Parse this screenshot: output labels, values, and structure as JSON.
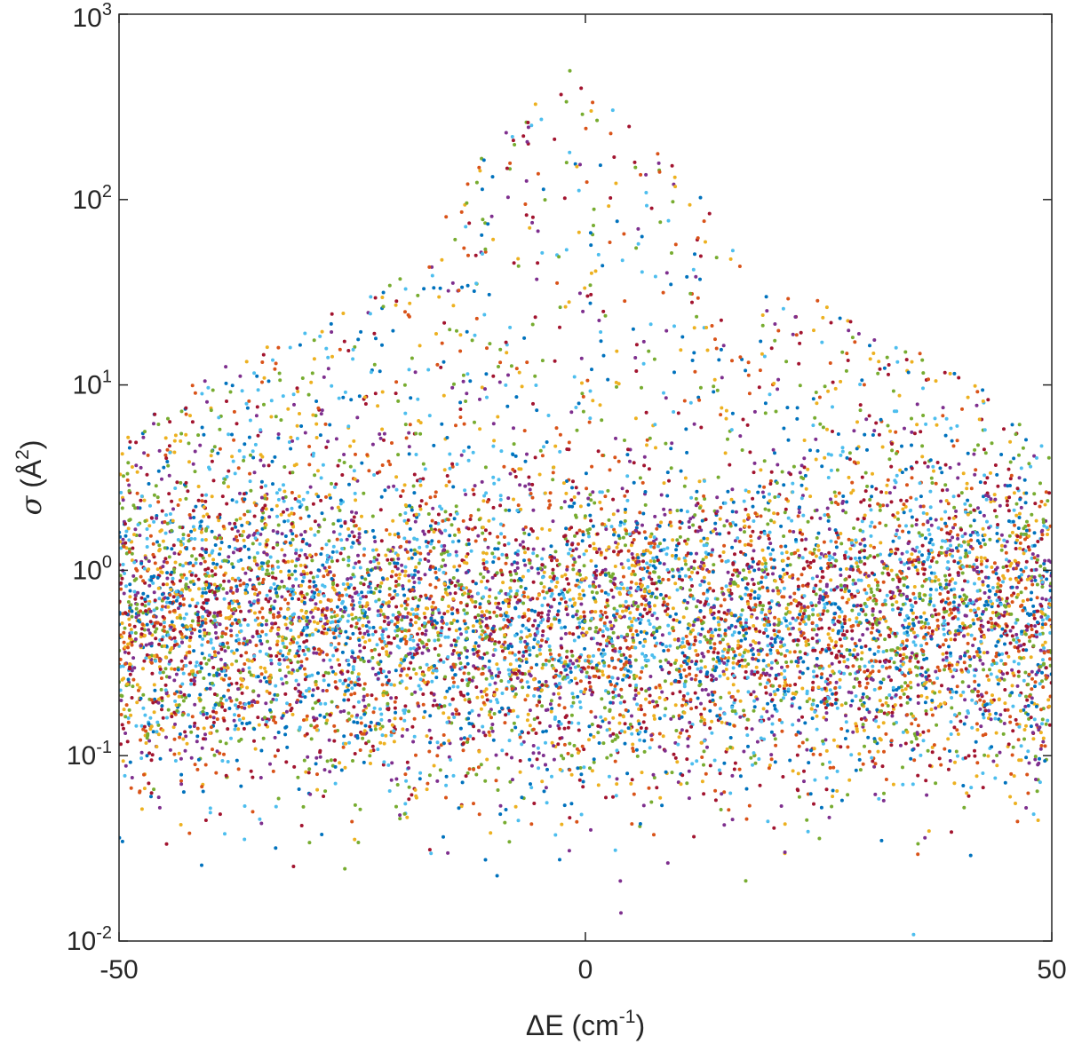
{
  "chart_data": {
    "type": "scatter",
    "title": "",
    "xlabel": {
      "base": "ΔE (cm",
      "sup": "-1",
      "close": ")"
    },
    "ylabel": {
      "sym": "σ",
      "base": " (Å",
      "sup": "2",
      "close": ")"
    },
    "x_range": [
      -50,
      50
    ],
    "y_range": [
      0.01,
      1000
    ],
    "y_scale": "log",
    "grid": false,
    "legend": "none",
    "x_ticks": [
      {
        "value": -50,
        "label": "-50"
      },
      {
        "value": 0,
        "label": "0"
      },
      {
        "value": 50,
        "label": "50"
      }
    ],
    "y_ticks": [
      {
        "value": 0.01,
        "base": "10",
        "exp": "-2"
      },
      {
        "value": 0.1,
        "base": "10",
        "exp": "-1"
      },
      {
        "value": 1,
        "base": "10",
        "exp": "0"
      },
      {
        "value": 10,
        "base": "10",
        "exp": "1"
      },
      {
        "value": 100,
        "base": "10",
        "exp": "2"
      },
      {
        "value": 1000,
        "base": "10",
        "exp": "3"
      }
    ],
    "series_colors": [
      "#0072BD",
      "#D95319",
      "#EDB120",
      "#7E2F8E",
      "#77AC30",
      "#4DBEEE",
      "#A2142F"
    ],
    "distribution": {
      "description_free_parameters": true,
      "background_center_log10": -0.35,
      "background_spread_log10": 0.42,
      "peak_center_x": 0,
      "peak_max": 600,
      "upper_envelope": [
        {
          "x": -50,
          "y": 5
        },
        {
          "x": -40,
          "y": 12
        },
        {
          "x": -30,
          "y": 20
        },
        {
          "x": -20,
          "y": 40
        },
        {
          "x": -10,
          "y": 200
        },
        {
          "x": -3,
          "y": 600
        },
        {
          "x": 0,
          "y": 450
        },
        {
          "x": 10,
          "y": 150
        },
        {
          "x": 20,
          "y": 40
        },
        {
          "x": 30,
          "y": 20
        },
        {
          "x": 40,
          "y": 12
        },
        {
          "x": 50,
          "y": 5
        }
      ],
      "lower_limit": 0.01
    }
  }
}
